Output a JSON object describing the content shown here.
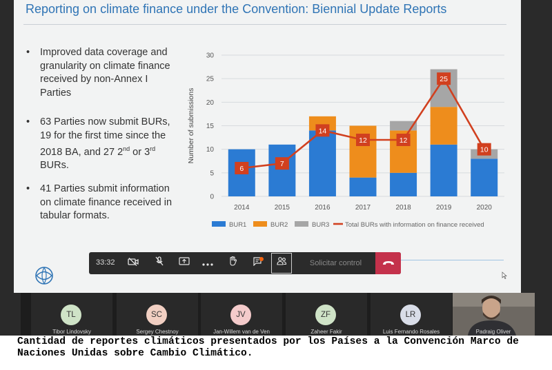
{
  "slide": {
    "title": "Reporting on climate finance under the Convention: Biennial Update Reports",
    "bullets": [
      {
        "symbol": "•",
        "text": "Improved data coverage and granularity on climate finance received by non-Annex I Parties"
      },
      {
        "symbol": "•",
        "text_before": "63 Parties now submit BURs, 19 for the first time since the 2018 BA, and 27 2",
        "sup1": "nd",
        "text_middle": " or 3",
        "sup2": "rd",
        "text_after": " BURs."
      },
      {
        "symbol": "•",
        "text": "41 Parties submit information on climate finance received in tabular formats."
      }
    ]
  },
  "chart_data": {
    "type": "bar",
    "stacked": true,
    "categories": [
      "2014",
      "2015",
      "2016",
      "2017",
      "2018",
      "2019",
      "2020"
    ],
    "ylabel": "Number of submissions",
    "ylim": [
      0,
      30
    ],
    "yticks": [
      "0",
      "5",
      "10",
      "15",
      "20",
      "25",
      "30"
    ],
    "grid": true,
    "legend_position": "bottom",
    "series": [
      {
        "name": "BUR1",
        "color": "#2b7bd3",
        "values": [
          10,
          11,
          14,
          4,
          5,
          11,
          8
        ]
      },
      {
        "name": "BUR2",
        "color": "#ee8d1c",
        "values": [
          0,
          0,
          3,
          11,
          9,
          8,
          0
        ]
      },
      {
        "name": "BUR3",
        "color": "#a6a6a6",
        "values": [
          0,
          0,
          0,
          0,
          2,
          8,
          2
        ]
      }
    ],
    "line": {
      "name": "Total BURs with information on finance received",
      "color": "#d1401f",
      "values": [
        6,
        7,
        14,
        12,
        12,
        25,
        10
      ],
      "labels": [
        "6",
        "7",
        "14",
        "12",
        "12",
        "25",
        "10"
      ]
    }
  },
  "teams": {
    "call_time": "33:32",
    "request_control_label": "Solicitar control",
    "icons": [
      "video-off-icon",
      "mic-off-icon",
      "share-screen-icon",
      "more-icon",
      "raise-hand-icon",
      "chat-icon",
      "participants-icon",
      "hang-up-icon"
    ],
    "hangup_color": "#c4314b"
  },
  "participants": [
    {
      "initials": "TL",
      "name": "Tibor Lindovsky",
      "color": "#cfe3c7"
    },
    {
      "initials": "SC",
      "name": "Sergey Chestnoy",
      "color": "#f1cfc2"
    },
    {
      "initials": "JV",
      "name": "Jan-Willem van de Ven",
      "color": "#f4cbcb"
    },
    {
      "initials": "ZF",
      "name": "Zaheer Fakir",
      "color": "#cfe3c7"
    },
    {
      "initials": "LR",
      "name": "Luis Fernando Rosales",
      "color": "#d9dde8"
    },
    {
      "initials": "",
      "name": "Padraig Oliver",
      "color": ""
    }
  ],
  "caption": "Cantidad de reportes climáticos presentados por los Países a la Convención Marco de Naciones Unidas sobre Cambio Climático."
}
